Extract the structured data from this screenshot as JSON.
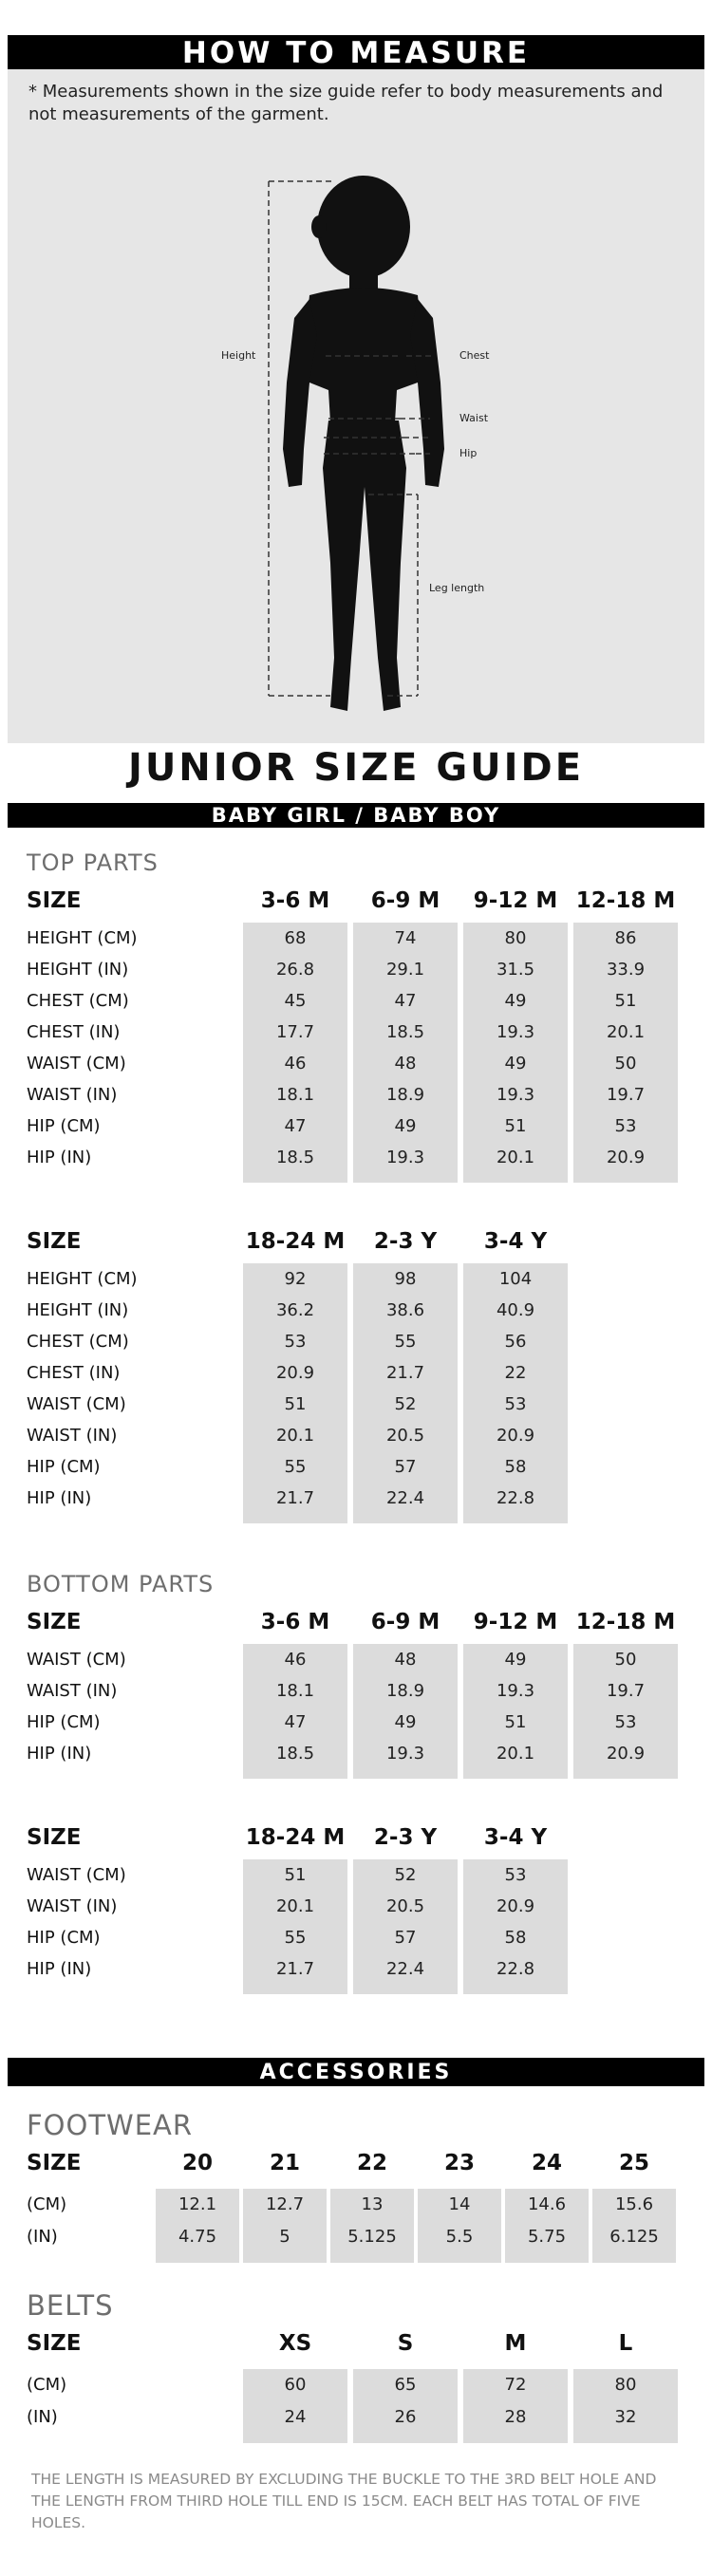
{
  "how_to_measure": {
    "title": "HOW TO MEASURE",
    "note": "* Measurements shown in the size guide refer to body measurements and not measurements of the garment.",
    "labels": {
      "height": "Height",
      "chest": "Chest",
      "waist": "Waist",
      "hip": "Hip",
      "leg": "Leg length"
    }
  },
  "guide": {
    "title": "JUNIOR SIZE GUIDE",
    "subtitle": "BABY GIRL / BABY BOY"
  },
  "top_parts": {
    "title": "TOP PARTS",
    "size_label": "SIZE",
    "row_labels": [
      "HEIGHT (CM)",
      "HEIGHT (IN)",
      "CHEST (CM)",
      "CHEST (IN)",
      "WAIST (CM)",
      "WAIST (IN)",
      "HIP (CM)",
      "HIP (IN)"
    ],
    "table1": {
      "columns": [
        "3-6 M",
        "6-9 M",
        "9-12 M",
        "12-18 M"
      ],
      "values": [
        [
          "68",
          "74",
          "80",
          "86"
        ],
        [
          "26.8",
          "29.1",
          "31.5",
          "33.9"
        ],
        [
          "45",
          "47",
          "49",
          "51"
        ],
        [
          "17.7",
          "18.5",
          "19.3",
          "20.1"
        ],
        [
          "46",
          "48",
          "49",
          "50"
        ],
        [
          "18.1",
          "18.9",
          "19.3",
          "19.7"
        ],
        [
          "47",
          "49",
          "51",
          "53"
        ],
        [
          "18.5",
          "19.3",
          "20.1",
          "20.9"
        ]
      ]
    },
    "table2": {
      "columns": [
        "18-24 M",
        "2-3 Y",
        "3-4 Y"
      ],
      "values": [
        [
          "92",
          "98",
          "104"
        ],
        [
          "36.2",
          "38.6",
          "40.9"
        ],
        [
          "53",
          "55",
          "56"
        ],
        [
          "20.9",
          "21.7",
          "22"
        ],
        [
          "51",
          "52",
          "53"
        ],
        [
          "20.1",
          "20.5",
          "20.9"
        ],
        [
          "55",
          "57",
          "58"
        ],
        [
          "21.7",
          "22.4",
          "22.8"
        ]
      ]
    }
  },
  "bottom_parts": {
    "title": "BOTTOM PARTS",
    "size_label": "SIZE",
    "row_labels": [
      "WAIST (CM)",
      "WAIST (IN)",
      "HIP (CM)",
      "HIP (IN)"
    ],
    "table1": {
      "columns": [
        "3-6 M",
        "6-9 M",
        "9-12 M",
        "12-18 M"
      ],
      "values": [
        [
          "46",
          "48",
          "49",
          "50"
        ],
        [
          "18.1",
          "18.9",
          "19.3",
          "19.7"
        ],
        [
          "47",
          "49",
          "51",
          "53"
        ],
        [
          "18.5",
          "19.3",
          "20.1",
          "20.9"
        ]
      ]
    },
    "table2": {
      "columns": [
        "18-24 M",
        "2-3 Y",
        "3-4 Y"
      ],
      "values": [
        [
          "51",
          "52",
          "53"
        ],
        [
          "20.1",
          "20.5",
          "20.9"
        ],
        [
          "55",
          "57",
          "58"
        ],
        [
          "21.7",
          "22.4",
          "22.8"
        ]
      ]
    }
  },
  "accessories": {
    "title": "ACCESSORIES",
    "footwear": {
      "title": "FOOTWEAR",
      "size_label": "SIZE",
      "row_labels": [
        "(CM)",
        "(IN)"
      ],
      "columns": [
        "20",
        "21",
        "22",
        "23",
        "24",
        "25"
      ],
      "values": [
        [
          "12.1",
          "12.7",
          "13",
          "14",
          "14.6",
          "15.6"
        ],
        [
          "4.75",
          "5",
          "5.125",
          "5.5",
          "5.75",
          "6.125"
        ]
      ]
    },
    "belts": {
      "title": "BELTS",
      "size_label": "SIZE",
      "row_labels": [
        "(CM)",
        "(IN)"
      ],
      "columns": [
        "XS",
        "S",
        "M",
        "L"
      ],
      "values": [
        [
          "60",
          "65",
          "72",
          "80"
        ],
        [
          "24",
          "26",
          "28",
          "32"
        ]
      ]
    },
    "footnote": "THE LENGTH IS MEASURED BY EXCLUDING THE BUCKLE TO THE 3RD BELT HOLE AND THE LENGTH FROM THIRD HOLE TILL END IS 15CM. EACH BELT HAS TOTAL OF FIVE HOLES."
  }
}
